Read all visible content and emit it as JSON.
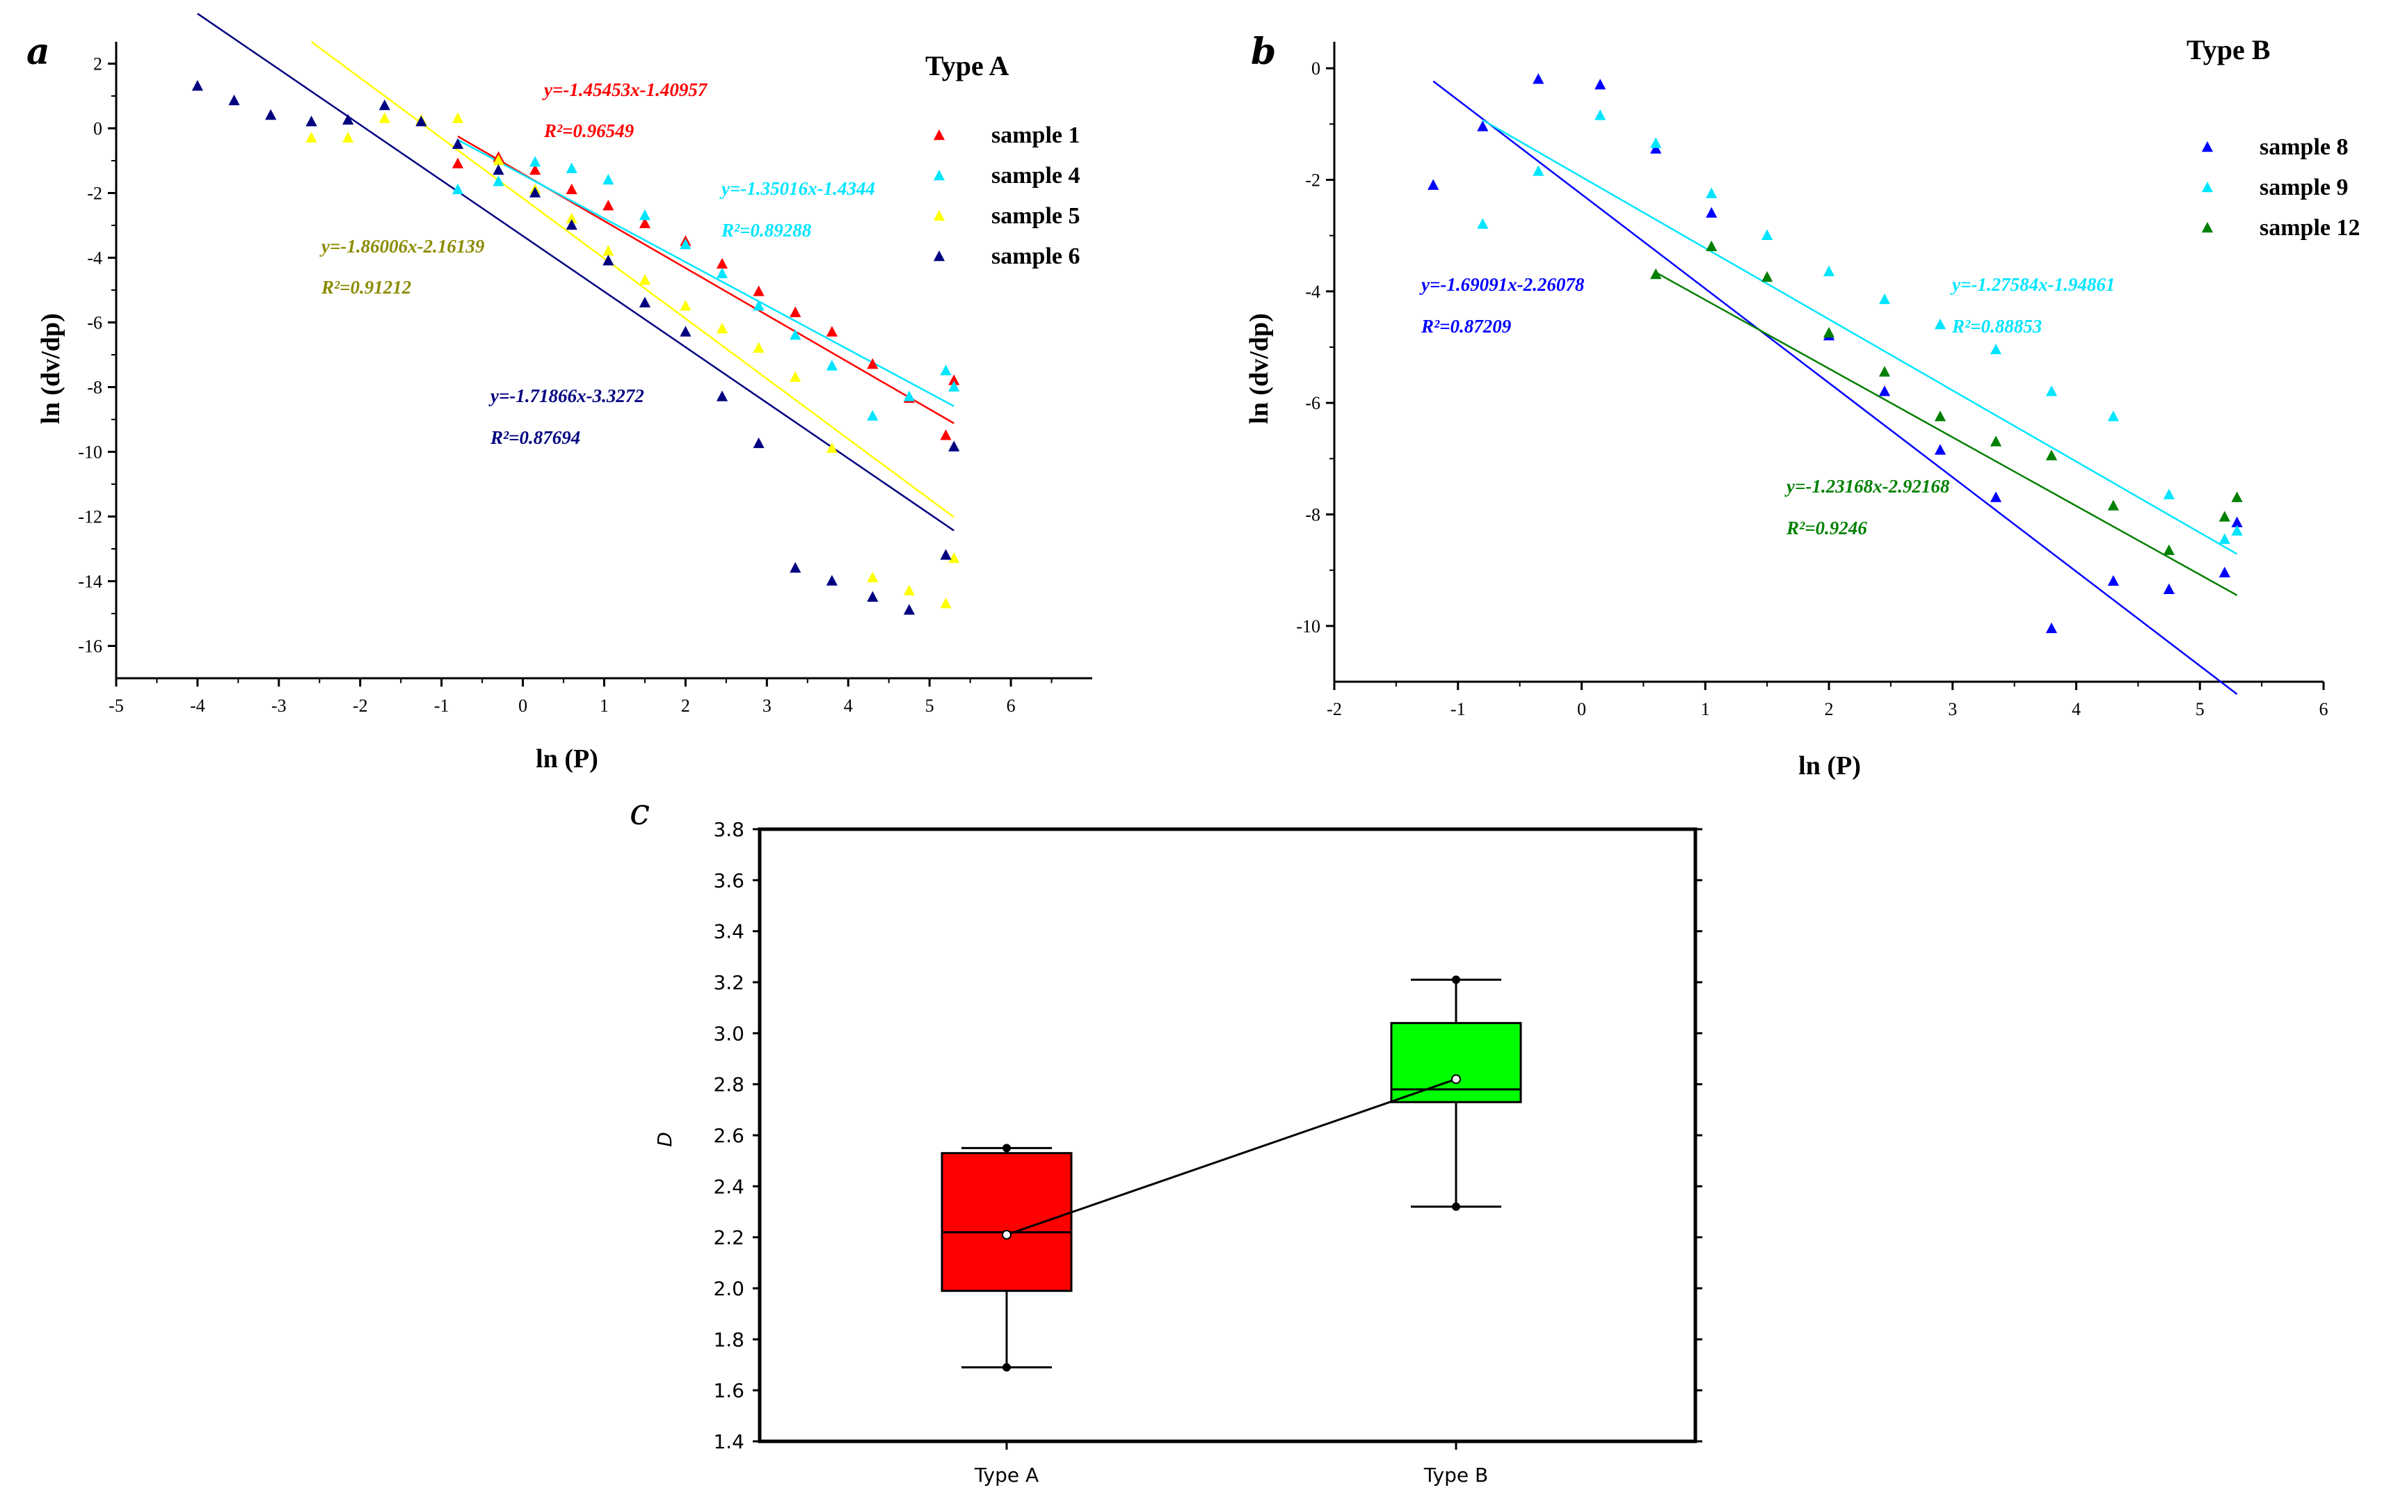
{
  "chart_data": [
    {
      "panel": "a",
      "type": "scatter",
      "title": "Type A",
      "xlabel": "ln (P)",
      "ylabel": "ln (dv/dp)",
      "xlim": [
        -5,
        7
      ],
      "ylim": [
        -17,
        3
      ],
      "xticks": [
        -5,
        -4,
        -3,
        -2,
        -1,
        0,
        1,
        2,
        3,
        4,
        5,
        6
      ],
      "yticks": [
        2,
        0,
        -2,
        -4,
        -6,
        -8,
        -10,
        -12,
        -14,
        -16
      ],
      "series": [
        {
          "name": "sample 1",
          "color": "#ff0000",
          "equation_color": "#ff0000",
          "slope": -1.45453,
          "intercept": -1.40957,
          "equation": "y=-1.45453x-1.40957",
          "r2": "R²=0.96549",
          "fit_range": [
            -0.8,
            5.3
          ],
          "points": [
            [
              -0.8,
              -1.1
            ],
            [
              -0.3,
              -0.9
            ],
            [
              0.15,
              -1.3
            ],
            [
              0.6,
              -1.9
            ],
            [
              1.05,
              -2.4
            ],
            [
              1.5,
              -2.95
            ],
            [
              2.0,
              -3.5
            ],
            [
              2.45,
              -4.2
            ],
            [
              2.9,
              -5.05
            ],
            [
              3.35,
              -5.7
            ],
            [
              3.8,
              -6.3
            ],
            [
              4.3,
              -7.3
            ],
            [
              4.75,
              -8.35
            ],
            [
              5.2,
              -9.5
            ],
            [
              5.3,
              -7.8
            ]
          ]
        },
        {
          "name": "sample 4",
          "color": "#00e5ff",
          "equation_color": "#00e5ff",
          "slope": -1.35016,
          "intercept": -1.4344,
          "equation": "y=-1.35016x-1.4344",
          "r2": "R²=0.89288",
          "fit_range": [
            -0.8,
            5.3
          ],
          "points": [
            [
              -0.8,
              -1.9
            ],
            [
              -0.3,
              -1.65
            ],
            [
              0.15,
              -1.05
            ],
            [
              0.6,
              -1.25
            ],
            [
              1.05,
              -1.6
            ],
            [
              1.5,
              -2.7
            ],
            [
              2.0,
              -3.6
            ],
            [
              2.45,
              -4.5
            ],
            [
              2.9,
              -5.5
            ],
            [
              3.35,
              -6.4
            ],
            [
              3.8,
              -7.35
            ],
            [
              4.3,
              -8.9
            ],
            [
              4.75,
              -8.3
            ],
            [
              5.2,
              -7.5
            ],
            [
              5.3,
              -8.0
            ]
          ]
        },
        {
          "name": "sample 5",
          "color": "#ffff00",
          "equation_color": "#8b8b00",
          "slope": -1.86006,
          "intercept": -2.16139,
          "equation": "y=-1.86006x-2.16139",
          "r2": "R²=0.91212",
          "fit_range": [
            -2.6,
            5.3
          ],
          "points": [
            [
              -2.6,
              -0.3
            ],
            [
              -2.15,
              -0.3
            ],
            [
              -1.7,
              0.3
            ],
            [
              -1.25,
              0.25
            ],
            [
              -0.8,
              0.3
            ],
            [
              -0.3,
              -1.0
            ],
            [
              0.15,
              -1.9
            ],
            [
              0.6,
              -2.8
            ],
            [
              1.05,
              -3.8
            ],
            [
              1.5,
              -4.7
            ],
            [
              2.0,
              -5.5
            ],
            [
              2.45,
              -6.2
            ],
            [
              2.9,
              -6.8
            ],
            [
              3.35,
              -7.7
            ],
            [
              3.8,
              -9.9
            ],
            [
              4.3,
              -13.9
            ],
            [
              4.75,
              -14.3
            ],
            [
              5.2,
              -14.7
            ],
            [
              5.3,
              -13.3
            ]
          ]
        },
        {
          "name": "sample 6",
          "color": "#000080",
          "equation_color": "#000080",
          "slope": -1.71866,
          "intercept": -3.3272,
          "equation": "y=-1.71866x-3.3272",
          "r2": "R²=0.87694",
          "fit_range": [
            -4.0,
            5.3
          ],
          "points": [
            [
              -4.0,
              1.3
            ],
            [
              -3.55,
              0.85
            ],
            [
              -3.1,
              0.4
            ],
            [
              -2.6,
              0.2
            ],
            [
              -2.15,
              0.25
            ],
            [
              -1.7,
              0.7
            ],
            [
              -1.25,
              0.2
            ],
            [
              -0.8,
              -0.5
            ],
            [
              -0.3,
              -1.3
            ],
            [
              0.15,
              -2.0
            ],
            [
              0.6,
              -3.0
            ],
            [
              1.05,
              -4.1
            ],
            [
              1.5,
              -5.4
            ],
            [
              2.0,
              -6.3
            ],
            [
              2.45,
              -8.3
            ],
            [
              2.9,
              -9.75
            ],
            [
              3.35,
              -13.6
            ],
            [
              3.8,
              -14.0
            ],
            [
              4.3,
              -14.5
            ],
            [
              4.75,
              -14.9
            ],
            [
              5.2,
              -13.2
            ],
            [
              5.3,
              -9.85
            ]
          ]
        }
      ]
    },
    {
      "panel": "b",
      "type": "scatter",
      "title": "Type B",
      "xlabel": "ln (P)",
      "ylabel": "ln (dv/dp)",
      "xlim": [
        -2,
        6
      ],
      "ylim": [
        -11,
        1
      ],
      "xticks": [
        -2,
        -1,
        0,
        1,
        2,
        3,
        4,
        5,
        6
      ],
      "yticks": [
        0,
        -2,
        -4,
        -6,
        -8,
        -10
      ],
      "series": [
        {
          "name": "sample 8",
          "color": "#0000ff",
          "equation_color": "#0000ff",
          "slope": -1.69091,
          "intercept": -2.26078,
          "equation": "y=-1.69091x-2.26078",
          "r2": "R²=0.87209",
          "fit_range": [
            -1.2,
            5.3
          ],
          "points": [
            [
              -1.2,
              -2.1
            ],
            [
              -0.8,
              -1.05
            ],
            [
              -0.35,
              -0.2
            ],
            [
              0.15,
              -0.3
            ],
            [
              0.6,
              -1.45
            ],
            [
              1.05,
              -2.6
            ],
            [
              2.0,
              -4.8
            ],
            [
              2.45,
              -5.8
            ],
            [
              2.9,
              -6.85
            ],
            [
              3.35,
              -7.7
            ],
            [
              3.8,
              -10.05
            ],
            [
              4.3,
              -9.2
            ],
            [
              4.75,
              -9.35
            ],
            [
              5.2,
              -9.05
            ],
            [
              5.3,
              -8.15
            ]
          ]
        },
        {
          "name": "sample 9",
          "color": "#00e5ff",
          "equation_color": "#00e5ff",
          "slope": -1.27584,
          "intercept": -1.94861,
          "equation": "y=-1.27584x-1.94861",
          "r2": "R²=0.88853",
          "fit_range": [
            -0.8,
            5.3
          ],
          "points": [
            [
              -0.8,
              -2.8
            ],
            [
              -0.35,
              -1.85
            ],
            [
              0.15,
              -0.85
            ],
            [
              0.6,
              -1.35
            ],
            [
              1.05,
              -2.25
            ],
            [
              1.5,
              -3.0
            ],
            [
              2.0,
              -3.65
            ],
            [
              2.45,
              -4.15
            ],
            [
              2.9,
              -4.6
            ],
            [
              3.35,
              -5.05
            ],
            [
              3.8,
              -5.8
            ],
            [
              4.3,
              -6.25
            ],
            [
              4.75,
              -7.65
            ],
            [
              5.2,
              -8.45
            ],
            [
              5.3,
              -8.3
            ]
          ]
        },
        {
          "name": "sample 12",
          "color": "#008000",
          "equation_color": "#008000",
          "slope": -1.23168,
          "intercept": -2.92168,
          "equation": "y=-1.23168x-2.92168",
          "r2": "R²=0.9246",
          "fit_range": [
            0.6,
            5.3
          ],
          "points": [
            [
              0.6,
              -3.7
            ],
            [
              1.05,
              -3.2
            ],
            [
              1.5,
              -3.75
            ],
            [
              2.0,
              -4.75
            ],
            [
              2.45,
              -5.45
            ],
            [
              2.9,
              -6.25
            ],
            [
              3.35,
              -6.7
            ],
            [
              3.8,
              -6.95
            ],
            [
              4.3,
              -7.85
            ],
            [
              4.75,
              -8.65
            ],
            [
              5.2,
              -8.05
            ],
            [
              5.3,
              -7.7
            ]
          ]
        }
      ]
    },
    {
      "panel": "c",
      "type": "box",
      "ylabel": "D",
      "ylim": [
        1.4,
        3.8
      ],
      "yticks": [
        1.4,
        1.6,
        1.8,
        2.0,
        2.2,
        2.4,
        2.6,
        2.8,
        3.0,
        3.2,
        3.4,
        3.6,
        3.8
      ],
      "categories": [
        "Type A",
        "Type B"
      ],
      "boxes": [
        {
          "name": "Type A",
          "color": "#ff0000",
          "min": 1.69,
          "q1": 1.99,
          "median": 2.22,
          "mean": 2.21,
          "q3": 2.53,
          "max": 2.55
        },
        {
          "name": "Type B",
          "color": "#00ff00",
          "min": 2.32,
          "q1": 2.73,
          "median": 2.78,
          "mean": 2.82,
          "q3": 3.04,
          "max": 3.21
        }
      ]
    }
  ],
  "panel_letters": {
    "a": "a",
    "b": "b",
    "c": "c"
  }
}
